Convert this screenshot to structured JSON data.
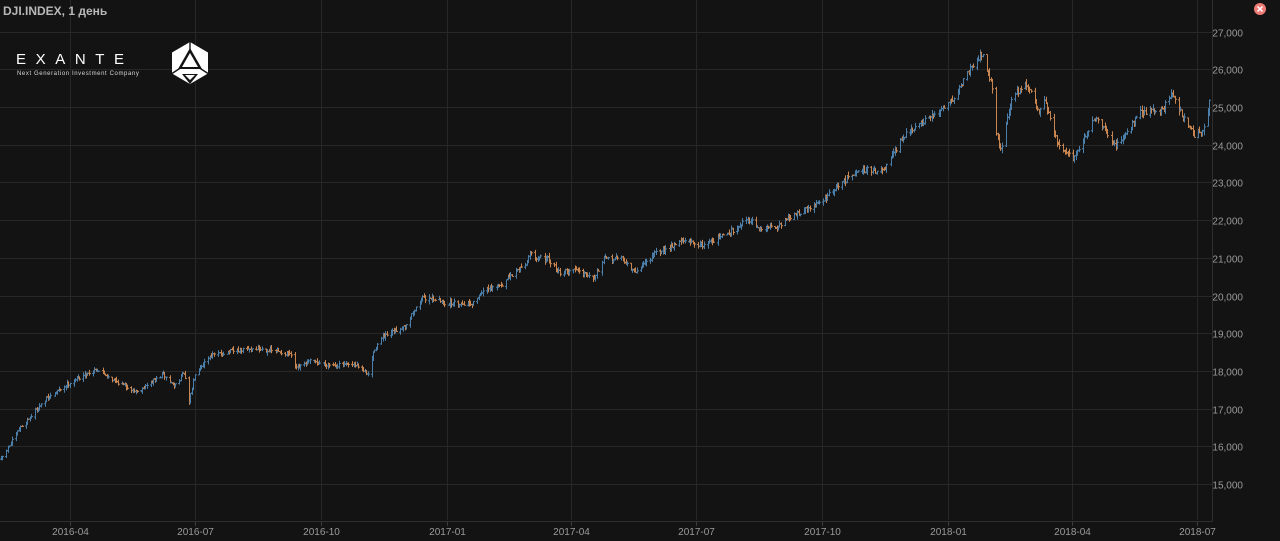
{
  "header": {
    "title": "DJI.INDEX, 1 день"
  },
  "logo": {
    "word": "EXANTE",
    "tagline": "Next Generation Investment Company"
  },
  "icons": {
    "close": "close-icon",
    "logo_mark": "hexagon-cube-icon"
  },
  "colors": {
    "background": "#131313",
    "grid": "#272727",
    "axis_text": "#9a9a9a",
    "up": "#4b7ea8",
    "down": "#c98550",
    "close_button": "#ee7a76"
  },
  "chart_data": {
    "type": "ohlc",
    "interval": "1 день",
    "x_axis": {
      "tick_labels": [
        "2016-04",
        "2016-07",
        "2016-10",
        "2017-01",
        "2017-04",
        "2017-07",
        "2017-10",
        "2018-01",
        "2018-04",
        "2018-07"
      ],
      "range": [
        "2016-02-11",
        "2018-07-10"
      ]
    },
    "y_axis": {
      "tick_values": [
        15000,
        16000,
        17000,
        18000,
        19000,
        20000,
        21000,
        22000,
        23000,
        24000,
        25000,
        26000,
        27000
      ],
      "tick_labels": [
        "15,000",
        "16,000",
        "17,000",
        "18,000",
        "19,000",
        "20,000",
        "21,000",
        "22,000",
        "23,000",
        "24,000",
        "25,000",
        "26,000",
        "27,000"
      ],
      "range": [
        14300,
        27500
      ],
      "position": "right"
    },
    "grid": true,
    "anchors": [
      [
        "2016-02-11",
        15660
      ],
      [
        "2016-02-25",
        16500
      ],
      [
        "2016-03-15",
        17250
      ],
      [
        "2016-04-01",
        17700
      ],
      [
        "2016-04-20",
        18050
      ],
      [
        "2016-05-06",
        17700
      ],
      [
        "2016-05-20",
        17450
      ],
      [
        "2016-06-08",
        17900
      ],
      [
        "2016-06-16",
        17600
      ],
      [
        "2016-06-23",
        17950
      ],
      [
        "2016-06-27",
        17150
      ],
      [
        "2016-07-01",
        17950
      ],
      [
        "2016-07-12",
        18400
      ],
      [
        "2016-07-25",
        18500
      ],
      [
        "2016-08-15",
        18600
      ],
      [
        "2016-09-08",
        18450
      ],
      [
        "2016-09-13",
        18050
      ],
      [
        "2016-09-23",
        18250
      ],
      [
        "2016-10-12",
        18150
      ],
      [
        "2016-10-27",
        18150
      ],
      [
        "2016-11-04",
        17900
      ],
      [
        "2016-11-09",
        18600
      ],
      [
        "2016-11-14",
        18850
      ],
      [
        "2016-12-01",
        19200
      ],
      [
        "2016-12-13",
        19900
      ],
      [
        "2016-12-20",
        19950
      ],
      [
        "2016-12-30",
        19800
      ],
      [
        "2017-01-20",
        19800
      ],
      [
        "2017-01-26",
        20100
      ],
      [
        "2017-02-10",
        20300
      ],
      [
        "2017-02-28",
        20900
      ],
      [
        "2017-03-01",
        21100
      ],
      [
        "2017-03-15",
        20950
      ],
      [
        "2017-03-24",
        20600
      ],
      [
        "2017-04-05",
        20700
      ],
      [
        "2017-04-18",
        20500
      ],
      [
        "2017-04-25",
        20950
      ],
      [
        "2017-05-08",
        21000
      ],
      [
        "2017-05-17",
        20600
      ],
      [
        "2017-06-01",
        21100
      ],
      [
        "2017-06-20",
        21450
      ],
      [
        "2017-07-06",
        21350
      ],
      [
        "2017-07-25",
        21650
      ],
      [
        "2017-08-08",
        22050
      ],
      [
        "2017-08-17",
        21750
      ],
      [
        "2017-08-29",
        21850
      ],
      [
        "2017-09-12",
        22150
      ],
      [
        "2017-09-29",
        22450
      ],
      [
        "2017-10-13",
        22900
      ],
      [
        "2017-10-27",
        23350
      ],
      [
        "2017-11-15",
        23300
      ],
      [
        "2017-11-30",
        24250
      ],
      [
        "2017-12-20",
        24750
      ],
      [
        "2018-01-05",
        25250
      ],
      [
        "2018-01-18",
        26100
      ],
      [
        "2018-01-26",
        26450
      ],
      [
        "2018-02-02",
        25500
      ],
      [
        "2018-02-05",
        24350
      ],
      [
        "2018-02-08",
        23850
      ],
      [
        "2018-02-16",
        25200
      ],
      [
        "2018-02-26",
        25650
      ],
      [
        "2018-03-08",
        24900
      ],
      [
        "2018-03-12",
        25200
      ],
      [
        "2018-03-22",
        23950
      ],
      [
        "2018-04-02",
        23650
      ],
      [
        "2018-04-18",
        24700
      ],
      [
        "2018-05-03",
        23950
      ],
      [
        "2018-05-21",
        24850
      ],
      [
        "2018-06-06",
        24950
      ],
      [
        "2018-06-12",
        25350
      ],
      [
        "2018-06-29",
        24250
      ],
      [
        "2018-07-06",
        24450
      ],
      [
        "2018-07-10",
        24900
      ]
    ],
    "final_close": 25180
  }
}
